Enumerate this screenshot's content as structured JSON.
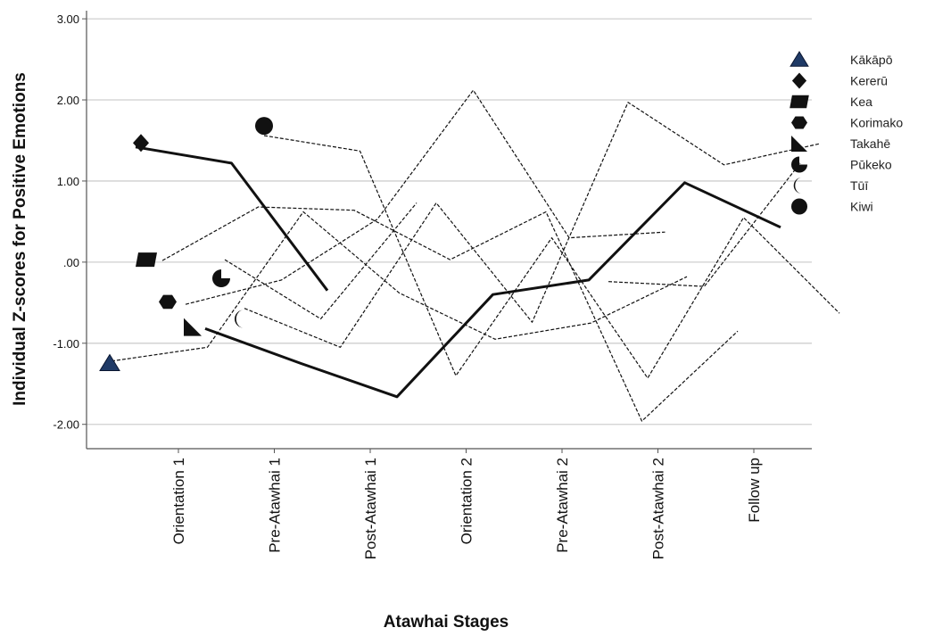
{
  "chart_data": {
    "type": "line",
    "xlabel": "Atawhai Stages",
    "ylabel": "Individual Z-scores for Positive Emotions",
    "categories": [
      "Orientation 1",
      "Pre-Atawhai 1",
      "Post-Atawhai 1",
      "Orientation 2",
      "Pre-Atawhai 2",
      "Post-Atawhai 2",
      "Follow up"
    ],
    "ylim": [
      -2.3,
      3.1
    ],
    "yticks": [
      3.0,
      2.0,
      1.0,
      0.0,
      -1.0,
      -2.0
    ],
    "ytick_labels": [
      "3.00",
      "2.00",
      "1.00",
      ".00",
      "-1.00",
      "-2.00"
    ],
    "grid": "horizontal",
    "legend_position": "right",
    "series": [
      {
        "name": "Kākāpō",
        "marker": "triangle",
        "marker_y": -1.25,
        "line_style": "dashed",
        "values": [
          -1.22,
          -1.05,
          0.62,
          -0.38,
          -0.95,
          -0.75,
          -0.18
        ]
      },
      {
        "name": "Kererū",
        "marker": "diamond",
        "marker_y": 1.47,
        "line_style": "solid",
        "values": [
          1.42,
          1.22,
          -0.35,
          null,
          null,
          null,
          null
        ]
      },
      {
        "name": "Kea",
        "marker": "square",
        "marker_y": 0.03,
        "line_style": "dashed",
        "values": [
          0.02,
          0.68,
          0.64,
          0.03,
          0.62,
          -1.96,
          -0.85
        ]
      },
      {
        "name": "Korimako",
        "marker": "hexagon",
        "marker_y": -0.49,
        "line_style": "dashed",
        "values": [
          -0.52,
          -0.22,
          0.53,
          2.12,
          0.3,
          0.37,
          null
        ]
      },
      {
        "name": "Takahē",
        "marker": "right-triangle",
        "marker_y": -0.8,
        "line_style": "solid",
        "values": [
          -0.82,
          -1.25,
          -1.66,
          -0.4,
          -0.22,
          0.98,
          0.43
        ]
      },
      {
        "name": "Pūkeko",
        "marker": "pie",
        "marker_y": -0.2,
        "line_style": "dashed",
        "values": [
          0.03,
          -0.7,
          0.73,
          null,
          -0.24,
          -0.3,
          1.22
        ]
      },
      {
        "name": "Tūī",
        "marker": "crescent",
        "marker_y": -0.7,
        "line_style": "dashed",
        "values": [
          -0.57,
          -1.05,
          0.73,
          -0.74,
          1.97,
          1.2,
          1.46
        ]
      },
      {
        "name": "Kiwi",
        "marker": "circle",
        "marker_y": 1.68,
        "line_style": "dashed",
        "values": [
          1.56,
          1.37,
          -1.4,
          0.3,
          -1.43,
          0.55,
          -0.63
        ]
      }
    ]
  }
}
